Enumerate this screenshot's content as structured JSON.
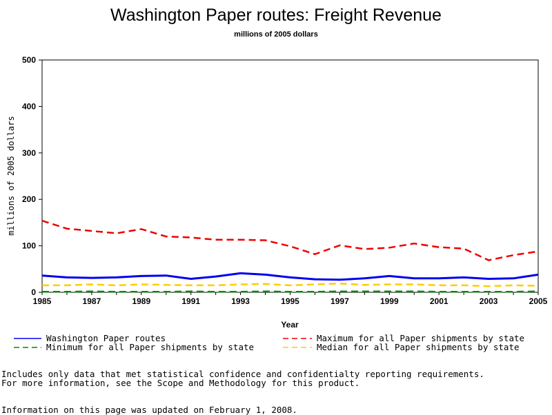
{
  "chart_data": {
    "type": "line",
    "title": "Washington Paper routes: Freight Revenue",
    "subtitle": "millions of 2005 dollars",
    "xlabel": "Year",
    "ylabel": "millions of 2005 dollars",
    "xlim": [
      1985,
      2005
    ],
    "ylim": [
      0,
      500
    ],
    "x_ticks": [
      "1985",
      "1987",
      "1989",
      "1991",
      "1993",
      "1995",
      "1997",
      "1999",
      "2001",
      "2003",
      "2005"
    ],
    "y_ticks": [
      "0",
      "100",
      "200",
      "300",
      "400",
      "500"
    ],
    "grid": false,
    "legend_position": "bottom",
    "x": [
      1985,
      1986,
      1987,
      1988,
      1989,
      1990,
      1991,
      1992,
      1993,
      1994,
      1995,
      1996,
      1997,
      1998,
      1999,
      2000,
      2001,
      2002,
      2003,
      2004,
      2005
    ],
    "series": [
      {
        "name": "Washington Paper routes",
        "color": "#0000ee",
        "style": "solid",
        "values": [
          36,
          32,
          31,
          32,
          35,
          36,
          29,
          34,
          41,
          38,
          32,
          28,
          27,
          30,
          35,
          30,
          30,
          32,
          29,
          30,
          38
        ]
      },
      {
        "name": "Maximum for all Paper shipments by state",
        "color": "#ee0000",
        "style": "dashed",
        "values": [
          154,
          137,
          132,
          127,
          136,
          120,
          118,
          113,
          113,
          112,
          99,
          82,
          101,
          93,
          96,
          105,
          97,
          94,
          69,
          80,
          88
        ]
      },
      {
        "name": "Minimum for all Paper shipments by state",
        "color": "#008800",
        "style": "dashed",
        "values": [
          1,
          1,
          2,
          1,
          1,
          1,
          2,
          1,
          1,
          2,
          1,
          1,
          2,
          2,
          2,
          2,
          1,
          1,
          1,
          1,
          2
        ]
      },
      {
        "name": "Median for all Paper shipments by state",
        "color": "#ffcc00",
        "style": "dashed",
        "values": [
          15,
          15,
          17,
          15,
          17,
          16,
          15,
          15,
          17,
          18,
          15,
          17,
          19,
          16,
          17,
          17,
          15,
          15,
          13,
          15,
          14
        ]
      }
    ]
  },
  "notes": {
    "line1": "Includes only data that met statistical confidence and confidentialty reporting requirements.",
    "line2": "For more information, see the Scope and Methodology for this product.",
    "updated": "Information on this page was updated on February 1, 2008."
  }
}
